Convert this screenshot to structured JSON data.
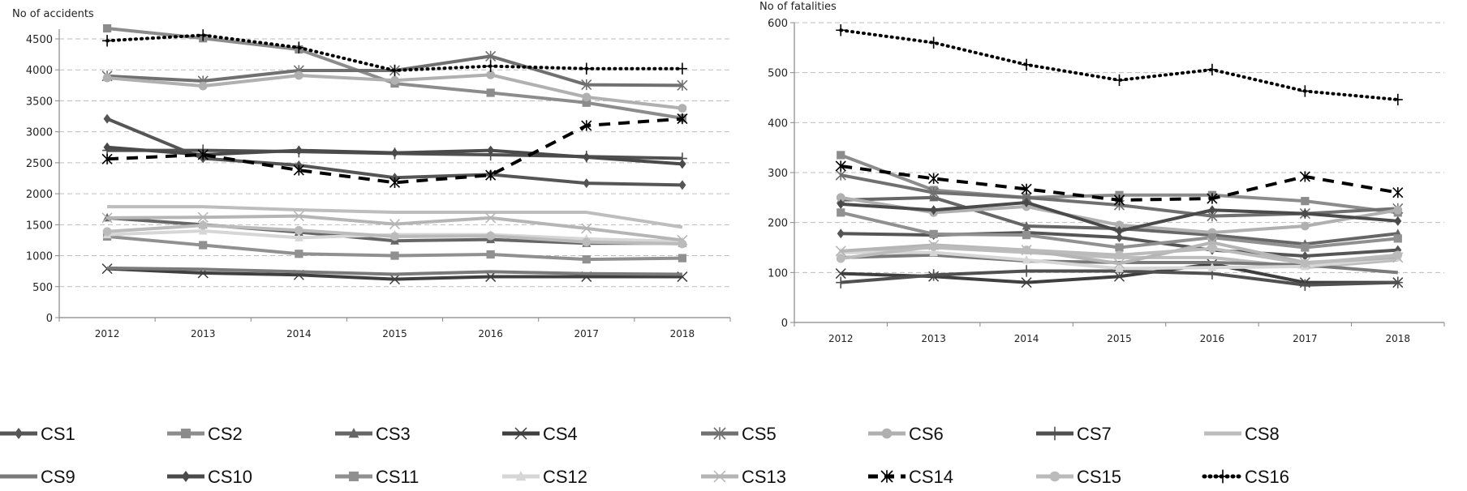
{
  "chart_data": [
    {
      "type": "line",
      "title": "",
      "ylabel": "No of accidents",
      "xlabel": "",
      "ylim": [
        0,
        4700
      ],
      "yticks": [
        0,
        500,
        1000,
        1500,
        2000,
        2500,
        3000,
        3500,
        4000,
        4500
      ],
      "grid": true,
      "x": [
        "2012",
        "2013",
        "2014",
        "2015",
        "2016",
        "2017",
        "2018"
      ],
      "series": [
        {
          "name": "CS1",
          "values": [
            3210,
            2570,
            2460,
            2260,
            2310,
            2170,
            2140
          ]
        },
        {
          "name": "CS2",
          "values": [
            4670,
            4510,
            4330,
            3780,
            3630,
            3470,
            3220
          ]
        },
        {
          "name": "CS3",
          "values": [
            1610,
            1500,
            1380,
            1240,
            1260,
            1200,
            1200
          ]
        },
        {
          "name": "CS4",
          "values": [
            790,
            720,
            690,
            620,
            660,
            660,
            660
          ]
        },
        {
          "name": "CS5",
          "values": [
            3900,
            3820,
            3990,
            3990,
            4220,
            3760,
            3750
          ]
        },
        {
          "name": "CS6",
          "values": [
            3870,
            3740,
            3910,
            3830,
            3920,
            3560,
            3380
          ]
        },
        {
          "name": "CS7",
          "values": [
            2700,
            2700,
            2680,
            2650,
            2630,
            2600,
            2570
          ]
        },
        {
          "name": "CS8",
          "values": [
            1790,
            1790,
            1740,
            1700,
            1700,
            1700,
            1460
          ]
        },
        {
          "name": "CS9",
          "values": [
            800,
            780,
            740,
            700,
            740,
            710,
            700
          ]
        },
        {
          "name": "CS10",
          "values": [
            2750,
            2630,
            2700,
            2660,
            2700,
            2590,
            2480
          ]
        },
        {
          "name": "CS11",
          "values": [
            1310,
            1170,
            1030,
            1000,
            1020,
            940,
            960
          ]
        },
        {
          "name": "CS12",
          "values": [
            1340,
            1400,
            1290,
            1340,
            1340,
            1270,
            1230
          ]
        },
        {
          "name": "CS13",
          "values": [
            1610,
            1620,
            1640,
            1510,
            1610,
            1440,
            1250
          ]
        },
        {
          "name": "CS14",
          "values": [
            2560,
            2630,
            2380,
            2180,
            2300,
            3100,
            3210
          ]
        },
        {
          "name": "CS15",
          "values": [
            1390,
            1490,
            1410,
            1310,
            1320,
            1220,
            1190
          ]
        },
        {
          "name": "CS16",
          "values": [
            4470,
            4560,
            4360,
            3990,
            4060,
            4020,
            4020
          ]
        }
      ]
    },
    {
      "type": "line",
      "title": "",
      "ylabel": "No of fatalities",
      "xlabel": "",
      "ylim": [
        0,
        600
      ],
      "yticks": [
        0,
        100,
        200,
        300,
        400,
        500,
        600
      ],
      "grid": true,
      "x": [
        "2012",
        "2013",
        "2014",
        "2015",
        "2016",
        "2017",
        "2018"
      ],
      "series": [
        {
          "name": "CS1",
          "values": [
            178,
            175,
            180,
            170,
            145,
            133,
            145
          ]
        },
        {
          "name": "CS2",
          "values": [
            335,
            265,
            250,
            255,
            255,
            243,
            220
          ]
        },
        {
          "name": "CS3",
          "values": [
            245,
            250,
            193,
            188,
            175,
            157,
            178
          ]
        },
        {
          "name": "CS4",
          "values": [
            98,
            92,
            80,
            92,
            117,
            80,
            80
          ]
        },
        {
          "name": "CS5",
          "values": [
            295,
            260,
            250,
            235,
            213,
            218,
            228
          ]
        },
        {
          "name": "CS6",
          "values": [
            250,
            220,
            232,
            195,
            180,
            193,
            225
          ]
        },
        {
          "name": "CS7",
          "values": [
            80,
            95,
            103,
            103,
            98,
            75,
            80
          ]
        },
        {
          "name": "CS8",
          "values": [
            140,
            150,
            140,
            130,
            130,
            110,
            125
          ]
        },
        {
          "name": "CS9",
          "values": [
            130,
            135,
            123,
            120,
            120,
            115,
            100
          ]
        },
        {
          "name": "CS10",
          "values": [
            237,
            225,
            240,
            183,
            225,
            218,
            203
          ]
        },
        {
          "name": "CS11",
          "values": [
            220,
            177,
            175,
            150,
            170,
            150,
            168
          ]
        },
        {
          "name": "CS12",
          "values": [
            140,
            140,
            125,
            108,
            110,
            112,
            130
          ]
        },
        {
          "name": "CS13",
          "values": [
            143,
            155,
            145,
            118,
            160,
            120,
            130
          ]
        },
        {
          "name": "CS14",
          "values": [
            313,
            288,
            267,
            245,
            248,
            292,
            260
          ]
        },
        {
          "name": "CS15",
          "values": [
            128,
            152,
            145,
            135,
            148,
            118,
            135
          ]
        },
        {
          "name": "CS16",
          "values": [
            585,
            560,
            516,
            485,
            506,
            463,
            446
          ]
        }
      ]
    }
  ],
  "legend": {
    "placement": "bottom",
    "items": [
      {
        "name": "CS1",
        "color": "#555555",
        "marker": "diamond",
        "dash": "solid"
      },
      {
        "name": "CS2",
        "color": "#8c8c8c",
        "marker": "square",
        "dash": "solid"
      },
      {
        "name": "CS3",
        "color": "#666666",
        "marker": "triangle",
        "dash": "solid"
      },
      {
        "name": "CS4",
        "color": "#3f3f3f",
        "marker": "x",
        "dash": "solid"
      },
      {
        "name": "CS5",
        "color": "#707070",
        "marker": "asterisk",
        "dash": "solid"
      },
      {
        "name": "CS6",
        "color": "#b0b0b0",
        "marker": "circle",
        "dash": "solid"
      },
      {
        "name": "CS7",
        "color": "#505050",
        "marker": "plus",
        "dash": "solid"
      },
      {
        "name": "CS8",
        "color": "#bdbdbd",
        "marker": "none",
        "dash": "solid"
      },
      {
        "name": "CS9",
        "color": "#7a7a7a",
        "marker": "none",
        "dash": "solid"
      },
      {
        "name": "CS10",
        "color": "#4a4a4a",
        "marker": "diamond",
        "dash": "solid"
      },
      {
        "name": "CS11",
        "color": "#909090",
        "marker": "square",
        "dash": "solid"
      },
      {
        "name": "CS12",
        "color": "#d6d6d6",
        "marker": "triangle",
        "dash": "solid"
      },
      {
        "name": "CS13",
        "color": "#b5b5b5",
        "marker": "x",
        "dash": "solid"
      },
      {
        "name": "CS14",
        "color": "#000000",
        "marker": "asterisk",
        "dash": "dashed"
      },
      {
        "name": "CS15",
        "color": "#bbbbbb",
        "marker": "circle",
        "dash": "solid"
      },
      {
        "name": "CS16",
        "color": "#000000",
        "marker": "plus",
        "dash": "dotted"
      }
    ]
  }
}
